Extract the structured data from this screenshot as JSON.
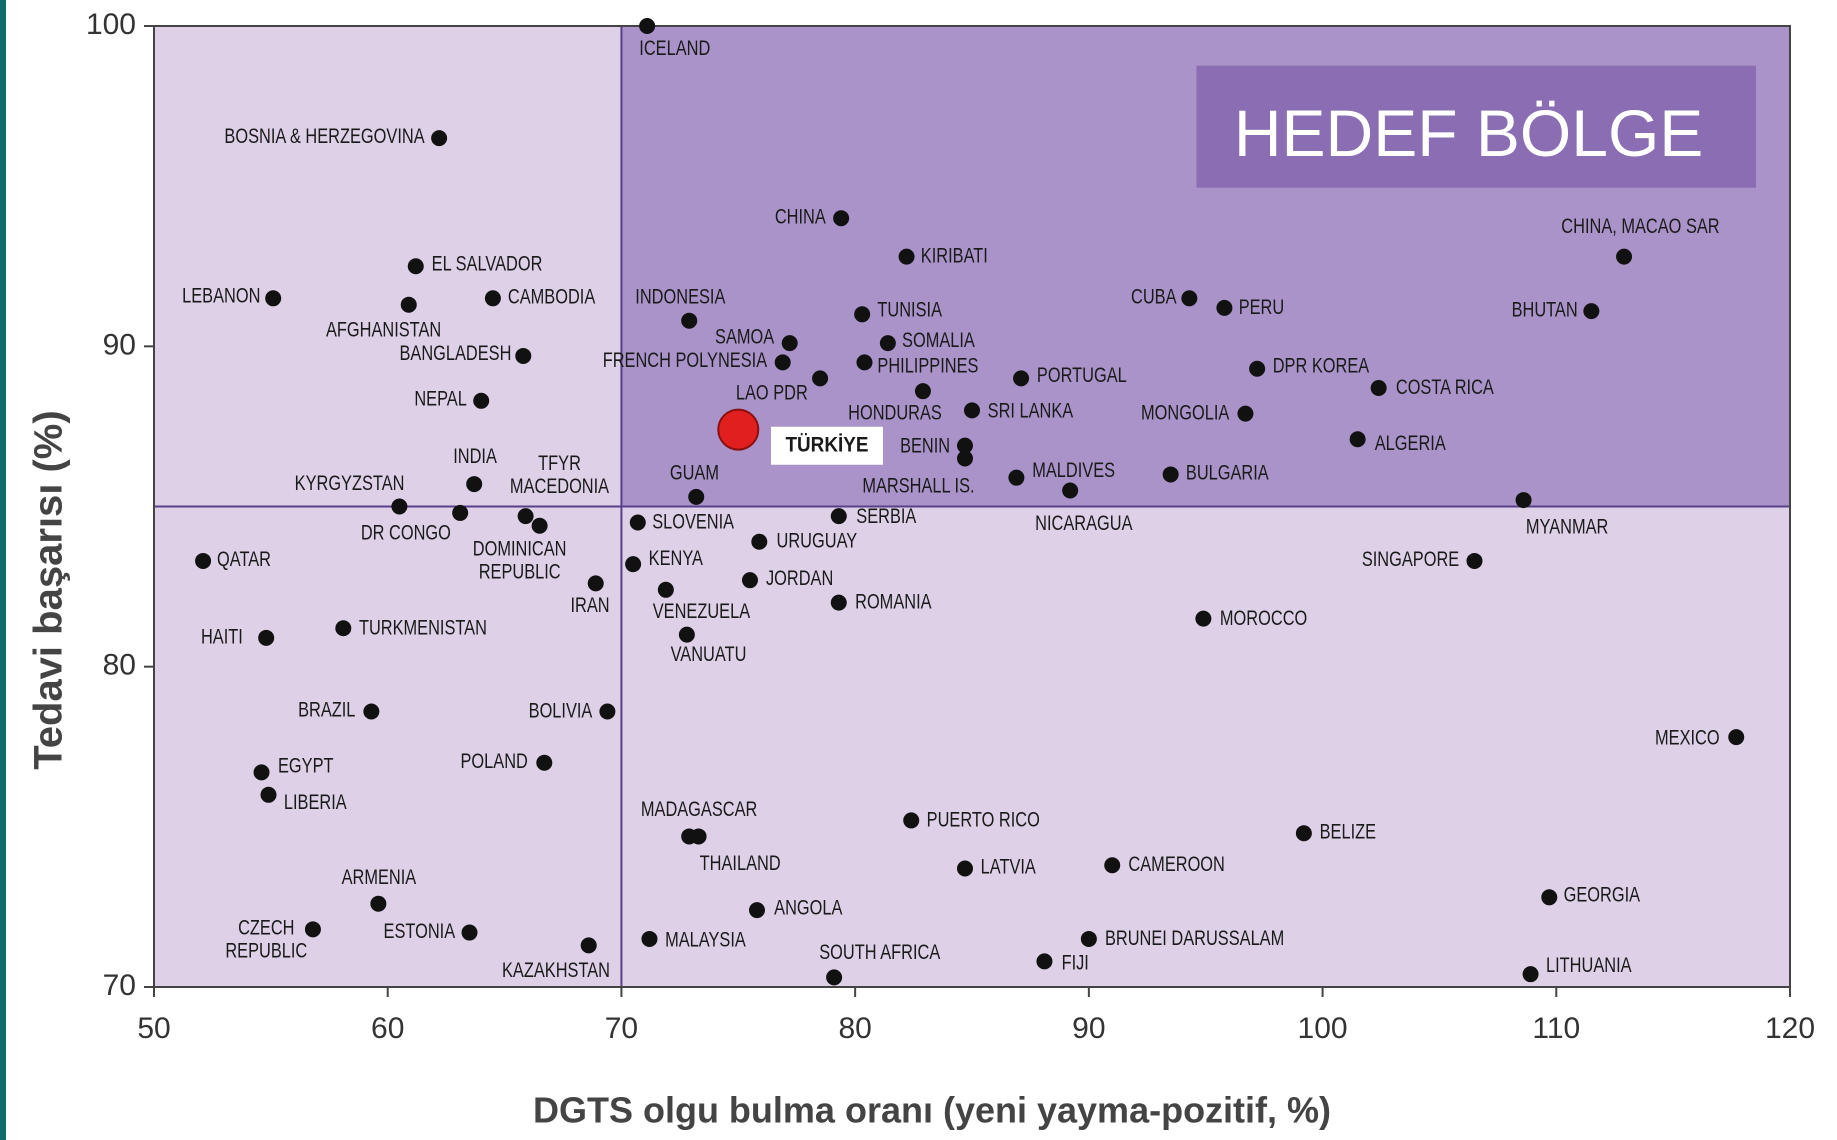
{
  "chart_data": {
    "type": "scatter",
    "xlabel": "DGTS olgu bulma oranı (yeni yayma-pozitif, %)",
    "ylabel": "Tedavi başarısı (%)",
    "annotation": "HEDEF BÖLGE",
    "xlim": [
      50,
      120
    ],
    "xticks": [
      50,
      60,
      70,
      80,
      90,
      100,
      110,
      120
    ],
    "ylim": [
      70,
      100
    ],
    "yticks": [
      70,
      80,
      90,
      100
    ],
    "quadrant": {
      "x": 70,
      "y": 85
    },
    "series": [
      {
        "color": "#111111",
        "labels": [
          "ICELAND",
          "BOSNIA & HERZEGOVINA",
          "CHINA",
          "KIRIBATI",
          "CHINA, MACAO SAR",
          "LEBANON",
          "EL SALVADOR",
          "CAMBODIA",
          "AFGHANISTAN",
          "INDONESIA",
          "TUNISIA",
          "CUBA",
          "PERU",
          "BHUTAN",
          "BANGLADESH",
          "SAMOA",
          "SOMALIA",
          "FRENCH POLYNESIA",
          "PHILIPPINES",
          "LAO PDR",
          "PORTUGAL",
          "DPR KOREA",
          "COSTA RICA",
          "HONDURAS",
          "NEPAL",
          "SRI LANKA",
          "MONGOLIA",
          "ALGERIA",
          "BENIN",
          "MARSHALL IS.",
          "MALDIVES",
          "BULGARIA",
          "NICARAGUA",
          "INDIA",
          [
            "TFYR",
            "MACEDONIA"
          ],
          "KYRGYZSTAN",
          "GUAM",
          "MYANMAR",
          "DR CONGO",
          [
            "DOMINICAN",
            "REPUBLIC"
          ],
          "SLOVENIA",
          "SERBIA",
          "URUGUAY",
          "KENYA",
          "QATAR",
          "SINGAPORE",
          "JORDAN",
          "IRAN",
          "VENEZUELA",
          "ROMANIA",
          "MOROCCO",
          "TURKMENISTAN",
          "HAITI",
          "VANUATU",
          "BRAZIL",
          "BOLIVIA",
          "MEXICO",
          "EGYPT",
          "POLAND",
          "LIBERIA",
          "MADAGASCAR",
          "THAILAND",
          "PUERTO RICO",
          "BELIZE",
          "LATVIA",
          "CAMEROON",
          "ARMENIA",
          "GEORGIA",
          [
            "CZECH",
            "REPUBLIC"
          ],
          "ESTONIA",
          "ANGOLA",
          "MALAYSIA",
          "KAZAKHSTAN",
          "BRUNEI DARUSSALAM",
          "SOUTH AFRICA",
          "FIJI",
          "LITHUANIA"
        ],
        "x": [
          71.1,
          62.2,
          79.4,
          82.2,
          112.9,
          55.1,
          61.2,
          64.5,
          60.9,
          72.9,
          80.3,
          94.3,
          95.8,
          111.5,
          65.8,
          77.2,
          81.4,
          76.9,
          80.4,
          78.5,
          87.1,
          97.2,
          102.4,
          82.9,
          64.0,
          85.0,
          96.7,
          101.5,
          84.7,
          84.7,
          86.9,
          93.5,
          89.2,
          63.7,
          65.9,
          60.5,
          73.2,
          108.6,
          63.1,
          66.5,
          70.7,
          79.3,
          75.9,
          70.5,
          52.1,
          106.5,
          75.5,
          68.9,
          71.9,
          79.3,
          94.9,
          58.1,
          54.8,
          72.8,
          59.3,
          69.4,
          117.7,
          54.6,
          66.7,
          54.9,
          72.9,
          73.3,
          82.4,
          99.2,
          84.7,
          91.0,
          59.6,
          109.7,
          56.8,
          63.5,
          75.8,
          71.2,
          68.6,
          90.0,
          79.1,
          88.1,
          108.9
        ],
        "values": [
          100,
          96.5,
          94.0,
          92.8,
          92.8,
          91.5,
          92.5,
          91.5,
          91.3,
          90.8,
          91.0,
          91.5,
          91.2,
          91.1,
          89.7,
          90.1,
          90.1,
          89.5,
          89.5,
          89.0,
          89.0,
          89.3,
          88.7,
          88.6,
          88.3,
          88.0,
          87.9,
          87.1,
          86.9,
          86.5,
          85.9,
          86.0,
          85.5,
          85.7,
          84.7,
          85.0,
          85.3,
          85.2,
          84.8,
          84.4,
          84.5,
          84.7,
          83.9,
          83.2,
          83.3,
          83.3,
          82.7,
          82.6,
          82.4,
          82.0,
          81.5,
          81.2,
          80.9,
          81.0,
          78.6,
          78.6,
          77.8,
          76.7,
          77.0,
          76.0,
          74.7,
          74.7,
          75.2,
          74.8,
          73.7,
          73.8,
          72.6,
          72.8,
          71.8,
          71.7,
          72.4,
          71.5,
          71.3,
          71.5,
          70.3,
          70.8,
          70.4
        ]
      },
      {
        "color": "#e21f1f",
        "labels": [
          "TÜRKİYE"
        ],
        "x": [
          75.0
        ],
        "values": [
          87.4
        ]
      }
    ]
  }
}
